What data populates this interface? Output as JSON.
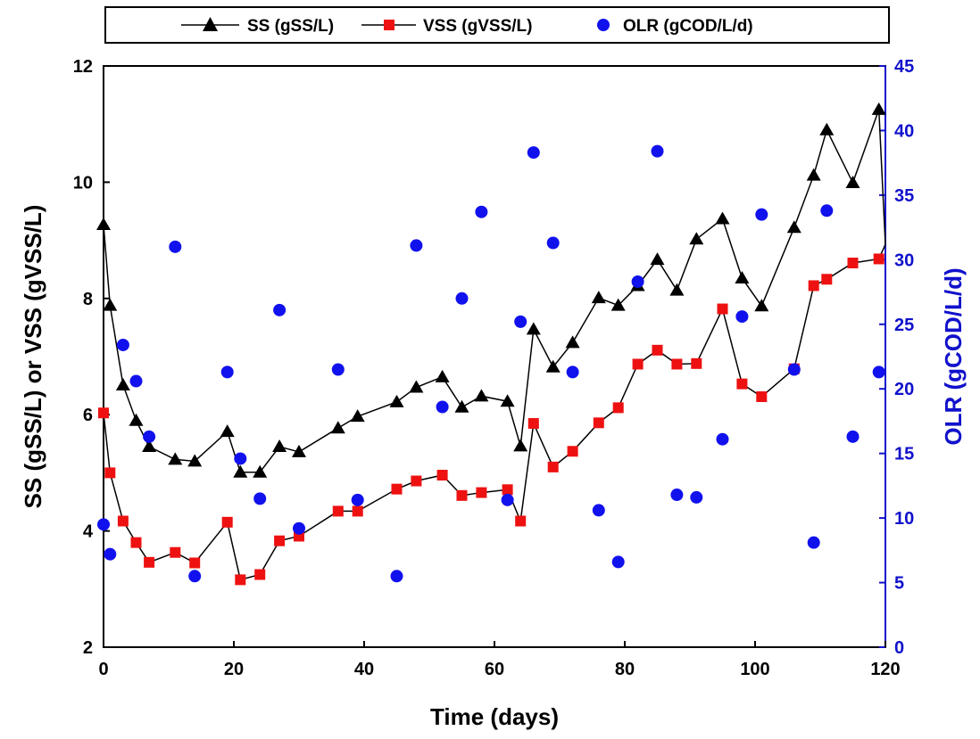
{
  "chart_data": {
    "type": "line",
    "xlabel": "Time (days)",
    "ylabel": "SS (gSS/L) or VSS (gVSS/L)",
    "ylabel_right": "OLR (gCOD/L/d)",
    "xlim": [
      0,
      120
    ],
    "ylim": [
      2,
      12
    ],
    "ylim_right": [
      0,
      45
    ],
    "x_ticks": [
      "0",
      "20",
      "40",
      "60",
      "80",
      "100",
      "120"
    ],
    "y_ticks": [
      "2",
      "4",
      "6",
      "8",
      "10",
      "12"
    ],
    "y_right_ticks": [
      "0",
      "5",
      "10",
      "15",
      "20",
      "25",
      "30",
      "35",
      "40",
      "45"
    ],
    "grid": false,
    "legend_position": "top",
    "colors": {
      "ss": "#000000",
      "vss": "#ee1111",
      "olr": "#1111ee",
      "right_axis": "#1111cc"
    },
    "series": [
      {
        "name": "SS (gSS/L)",
        "type": "line",
        "marker": "triangle",
        "axis": "left",
        "x": [
          0,
          1,
          3,
          5,
          7,
          11,
          14,
          19,
          21,
          24,
          27,
          30,
          36,
          39,
          45,
          48,
          52,
          55,
          58,
          62,
          64,
          66,
          69,
          72,
          76,
          79,
          82,
          85,
          88,
          91,
          95,
          98,
          101,
          106,
          109,
          111,
          115,
          119,
          120
        ],
        "y": [
          9.27,
          7.88,
          6.51,
          5.9,
          5.45,
          5.23,
          5.2,
          5.71,
          5.01,
          5.01,
          5.45,
          5.36,
          5.77,
          5.97,
          6.22,
          6.47,
          6.65,
          6.13,
          6.32,
          6.23,
          5.46,
          7.47,
          6.82,
          7.24,
          8.01,
          7.88,
          8.22,
          8.67,
          8.14,
          9.02,
          9.37,
          8.35,
          7.87,
          9.22,
          10.12,
          10.9,
          9.99,
          11.25,
          8.93
        ]
      },
      {
        "name": "VSS (gVSS/L)",
        "type": "line",
        "marker": "square",
        "axis": "left",
        "x": [
          0,
          1,
          3,
          5,
          7,
          11,
          14,
          19,
          21,
          24,
          27,
          30,
          36,
          39,
          45,
          48,
          52,
          55,
          58,
          62,
          64,
          66,
          69,
          72,
          76,
          79,
          82,
          85,
          88,
          91,
          95,
          98,
          101,
          106,
          109,
          111,
          115,
          119,
          120
        ],
        "y": [
          6.03,
          5.0,
          4.17,
          3.8,
          3.46,
          3.63,
          3.45,
          4.15,
          3.16,
          3.25,
          3.83,
          3.91,
          4.34,
          4.34,
          4.72,
          4.86,
          4.96,
          4.61,
          4.66,
          4.71,
          4.17,
          5.85,
          5.1,
          5.37,
          5.86,
          6.12,
          6.87,
          7.11,
          6.87,
          6.88,
          7.82,
          6.53,
          6.31,
          6.79,
          8.22,
          8.33,
          8.61,
          8.68,
          8.93
        ]
      },
      {
        "name": "OLR (gCOD/L/d)",
        "type": "scatter",
        "marker": "circle",
        "axis": "right",
        "x": [
          0,
          1,
          3,
          5,
          7,
          11,
          14,
          19,
          21,
          24,
          27,
          30,
          36,
          39,
          45,
          48,
          52,
          55,
          58,
          62,
          64,
          66,
          69,
          72,
          76,
          79,
          82,
          85,
          88,
          91,
          95,
          98,
          101,
          106,
          109,
          111,
          115,
          119
        ],
        "y": [
          9.5,
          7.2,
          23.4,
          20.6,
          16.3,
          31.0,
          5.5,
          21.3,
          14.6,
          11.5,
          26.1,
          9.2,
          21.5,
          11.4,
          5.5,
          31.1,
          18.6,
          27.0,
          33.7,
          11.4,
          25.2,
          38.3,
          31.3,
          21.3,
          10.6,
          6.6,
          28.3,
          38.4,
          11.8,
          11.6,
          16.1,
          25.6,
          33.5,
          21.5,
          8.1,
          33.8,
          16.3,
          21.3
        ]
      }
    ]
  }
}
